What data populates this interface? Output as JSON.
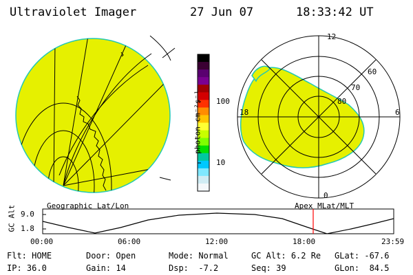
{
  "header": {
    "title": "Ultraviolet Imager",
    "date": "27 Jun 07",
    "time": "18:33:42 UT"
  },
  "geo_map": {
    "label": "Geographic Lat/Lon"
  },
  "polar_map": {
    "label": "Apex MLat/MLT",
    "mlt_labels": [
      "12",
      "18",
      "6",
      "0"
    ],
    "mlat_labels": [
      "60",
      "70",
      "80"
    ]
  },
  "colorbar": {
    "unit_label": "photon cm⁻²s⁻¹",
    "ticks": [
      "100",
      "10"
    ],
    "colors": [
      "#000000",
      "#3b0033",
      "#5a0070",
      "#7a0090",
      "#a00000",
      "#d30000",
      "#ff3000",
      "#ff8c00",
      "#ffc400",
      "#ffff33",
      "#c8ff00",
      "#7fff00",
      "#00e000",
      "#00c8a0",
      "#00c8ff",
      "#80e8ff",
      "#d0ecf4",
      "#f4f8fb"
    ]
  },
  "altitude_plot": {
    "y_axis_label": "GC Alt",
    "y_ticks": [
      "9.0",
      "1.8"
    ],
    "x_ticks": [
      "00:00",
      "06:00",
      "12:00",
      "18:00",
      "23:59"
    ],
    "marker_color": "#ff0000"
  },
  "status": {
    "filter": {
      "label": "Flt:",
      "value": "HOME"
    },
    "door": {
      "label": "Door:",
      "value": "Open"
    },
    "mode": {
      "label": "Mode:",
      "value": "Normal"
    },
    "gc_alt": {
      "label": "GC Alt:",
      "value": "6.2 Re"
    },
    "glat": {
      "label": "GLat:",
      "value": "-67.6"
    },
    "ip": {
      "label": "IP:",
      "value": "36.0"
    },
    "gain": {
      "label": "Gain:",
      "value": "14"
    },
    "dsp": {
      "label": "Dsp:",
      "value": "-7.2"
    },
    "seq": {
      "label": "Seq:",
      "value": "39"
    },
    "glon": {
      "label": "GLon:",
      "value": "84.5"
    }
  },
  "colors": {
    "aurora": "#e6f000",
    "ring": "#22c8b4"
  }
}
